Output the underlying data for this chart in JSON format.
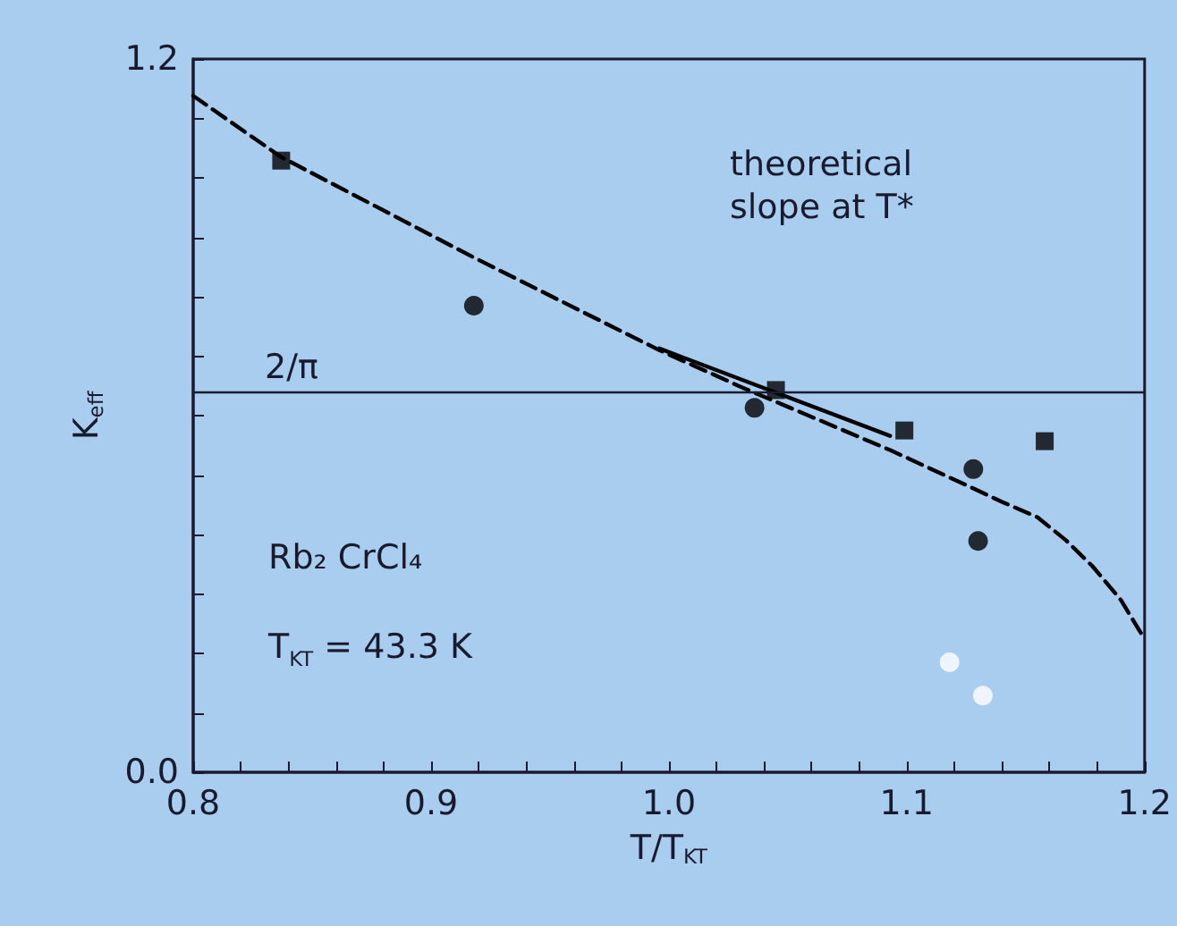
{
  "chart_data": {
    "type": "scatter",
    "xlabel": "T/T$_{KT}$",
    "ylabel": "K$_{eff}$",
    "xlim": [
      0.8,
      1.2
    ],
    "ylim": [
      0,
      1.2
    ],
    "xticks": [
      {
        "value": 0.8,
        "label": "0.8"
      },
      {
        "value": 0.82,
        "label": null
      },
      {
        "value": 0.84,
        "label": null
      },
      {
        "value": 0.86,
        "label": null
      },
      {
        "value": 0.88,
        "label": null
      },
      {
        "value": 0.9,
        "label": "0.9"
      },
      {
        "value": 0.92,
        "label": null
      },
      {
        "value": 0.94,
        "label": null
      },
      {
        "value": 0.96,
        "label": null
      },
      {
        "value": 0.98,
        "label": null
      },
      {
        "value": 1,
        "label": "1.0"
      },
      {
        "value": 1.02,
        "label": null
      },
      {
        "value": 1.04,
        "label": null
      },
      {
        "value": 1.06,
        "label": null
      },
      {
        "value": 1.08,
        "label": null
      },
      {
        "value": 1.1,
        "label": "1.1"
      },
      {
        "value": 1.12,
        "label": null
      },
      {
        "value": 1.14,
        "label": null
      },
      {
        "value": 1.16,
        "label": null
      },
      {
        "value": 1.18,
        "label": null
      },
      {
        "value": 1.2,
        "label": "1.2"
      }
    ],
    "yticks": [
      {
        "value": 0,
        "label": "0.0"
      },
      {
        "value": 0.1,
        "label": null
      },
      {
        "value": 0.2,
        "label": null
      },
      {
        "value": 0.3,
        "label": null
      },
      {
        "value": 0.4,
        "label": null
      },
      {
        "value": 0.5,
        "label": null
      },
      {
        "value": 0.6,
        "label": null
      },
      {
        "value": 0.7,
        "label": null
      },
      {
        "value": 0.8,
        "label": null
      },
      {
        "value": 0.9,
        "label": null
      },
      {
        "value": 1,
        "label": null
      },
      {
        "value": 1.1,
        "label": null
      },
      {
        "value": 1.2,
        "label": "1.2"
      }
    ],
    "grid": false,
    "series": [
      {
        "type": "line",
        "color": "#000000",
        "marker": "none",
        "line_style": "dashed",
        "x": [
          0.8,
          0.837,
          0.918,
          0.996,
          1.031,
          1.093,
          1.124,
          1.14,
          1.155,
          1.167,
          1.178,
          1.19,
          1.2
        ],
        "values": [
          1.138,
          1.035,
          0.866,
          0.71,
          0.647,
          0.542,
          0.485,
          0.455,
          0.429,
          0.39,
          0.347,
          0.29,
          0.224
        ]
      },
      {
        "type": "line",
        "color": "#000000",
        "marker": "none",
        "line_style": "solid",
        "x": [
          0.996,
          1.093
        ],
        "values": [
          0.713,
          0.566
        ]
      },
      {
        "color": "#000000",
        "marker": "square",
        "x": [
          0.837,
          1.045,
          1.099,
          1.158
        ],
        "values": [
          1.029,
          0.643,
          0.575,
          0.557
        ]
      },
      {
        "color": "#000000",
        "marker": "circle",
        "x": [
          0.918,
          1.036,
          1.128,
          1.13
        ],
        "values": [
          0.785,
          0.613,
          0.51,
          0.389
        ]
      },
      {
        "color": "#ffffff",
        "marker": "circle",
        "x": [
          1.118,
          1.132
        ],
        "values": [
          0.185,
          0.129
        ]
      }
    ],
    "ref_lines": [
      {
        "axis": "y",
        "value": 0.64,
        "label": "2/π",
        "color": "#1a1a2e"
      }
    ],
    "annotations": [
      "theoretical\nslope at T*",
      "Rb₂ CrCl₄",
      "T$_{KT}$ = 43.3 K"
    ]
  }
}
